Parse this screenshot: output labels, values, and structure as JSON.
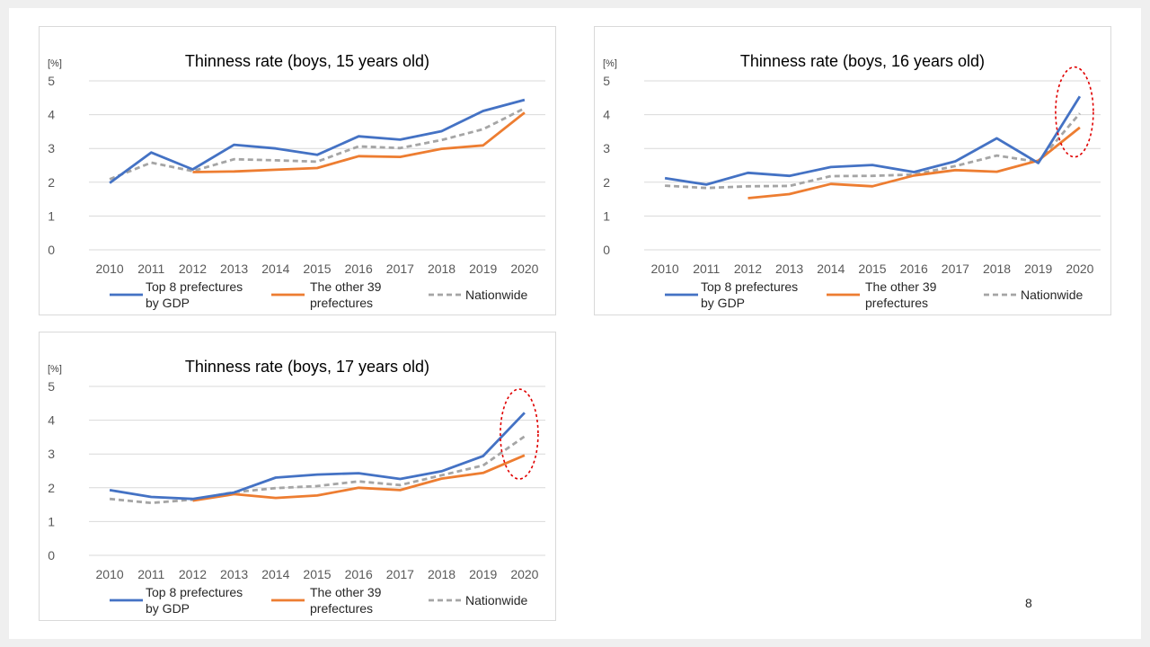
{
  "page_number": "8",
  "colors": {
    "top8": "#4472C4",
    "other39": "#ED7D31",
    "nationwide": "#A5A5A5",
    "grid": "#D9D9D9",
    "highlight": "#E00000"
  },
  "legend": {
    "top8": [
      "Top 8 prefectures",
      "by GDP"
    ],
    "other39": [
      "The other 39",
      "prefectures"
    ],
    "nationwide": [
      "Nationwide"
    ]
  },
  "chart_data": [
    {
      "type": "line",
      "title": "Thinness rate (boys, 15 years old)",
      "unit": "[%]",
      "x": [
        "2010",
        "2011",
        "2012",
        "2013",
        "2014",
        "2015",
        "2016",
        "2017",
        "2018",
        "2019",
        "2020"
      ],
      "ylim": [
        0,
        5
      ],
      "yticks": [
        "0",
        "1",
        "2",
        "3",
        "4",
        "5"
      ],
      "grid": true,
      "legend_position": "bottom",
      "highlight_2020": false,
      "series": [
        {
          "key": "top8",
          "name": "Top 8 prefectures by GDP",
          "values": [
            1.98,
            2.88,
            2.38,
            3.11,
            3.0,
            2.81,
            3.36,
            3.26,
            3.51,
            4.11,
            4.44
          ]
        },
        {
          "key": "other39",
          "name": "The other 39 prefectures",
          "values": [
            null,
            null,
            2.3,
            2.32,
            2.37,
            2.42,
            2.77,
            2.75,
            2.99,
            3.09,
            4.06
          ]
        },
        {
          "key": "nationwide",
          "name": "Nationwide",
          "values": [
            2.09,
            2.58,
            2.33,
            2.68,
            2.65,
            2.61,
            3.06,
            3.01,
            3.25,
            3.57,
            4.19
          ]
        }
      ]
    },
    {
      "type": "line",
      "title": "Thinness rate (boys, 16 years old)",
      "unit": "[%]",
      "x": [
        "2010",
        "2011",
        "2012",
        "2013",
        "2014",
        "2015",
        "2016",
        "2017",
        "2018",
        "2019",
        "2020"
      ],
      "ylim": [
        0,
        5
      ],
      "yticks": [
        "0",
        "1",
        "2",
        "3",
        "4",
        "5"
      ],
      "grid": true,
      "legend_position": "bottom",
      "highlight_2020": true,
      "series": [
        {
          "key": "top8",
          "name": "Top 8 prefectures by GDP",
          "values": [
            2.12,
            1.93,
            2.28,
            2.19,
            2.45,
            2.51,
            2.3,
            2.62,
            3.3,
            2.57,
            4.54
          ]
        },
        {
          "key": "other39",
          "name": "The other 39 prefectures",
          "values": [
            null,
            null,
            1.53,
            1.65,
            1.95,
            1.88,
            2.2,
            2.36,
            2.31,
            2.64,
            3.62
          ]
        },
        {
          "key": "nationwide",
          "name": "Nationwide",
          "values": [
            1.9,
            1.83,
            1.88,
            1.89,
            2.18,
            2.19,
            2.23,
            2.48,
            2.79,
            2.6,
            4.04
          ]
        }
      ]
    },
    {
      "type": "line",
      "title": "Thinness rate (boys, 17 years old)",
      "unit": "[%]",
      "x": [
        "2010",
        "2011",
        "2012",
        "2013",
        "2014",
        "2015",
        "2016",
        "2017",
        "2018",
        "2019",
        "2020"
      ],
      "ylim": [
        0,
        5
      ],
      "yticks": [
        "0",
        "1",
        "2",
        "3",
        "4",
        "5"
      ],
      "grid": true,
      "legend_position": "bottom",
      "highlight_2020": true,
      "series": [
        {
          "key": "top8",
          "name": "Top 8 prefectures by GDP",
          "values": [
            1.93,
            1.73,
            1.67,
            1.86,
            2.3,
            2.39,
            2.43,
            2.26,
            2.49,
            2.94,
            4.22
          ]
        },
        {
          "key": "other39",
          "name": "The other 39 prefectures",
          "values": [
            null,
            null,
            1.62,
            1.81,
            1.7,
            1.77,
            2.0,
            1.93,
            2.27,
            2.44,
            2.96
          ]
        },
        {
          "key": "nationwide",
          "name": "Nationwide",
          "values": [
            1.67,
            1.55,
            1.65,
            1.87,
            1.99,
            2.05,
            2.19,
            2.08,
            2.37,
            2.66,
            3.52
          ]
        }
      ]
    }
  ]
}
